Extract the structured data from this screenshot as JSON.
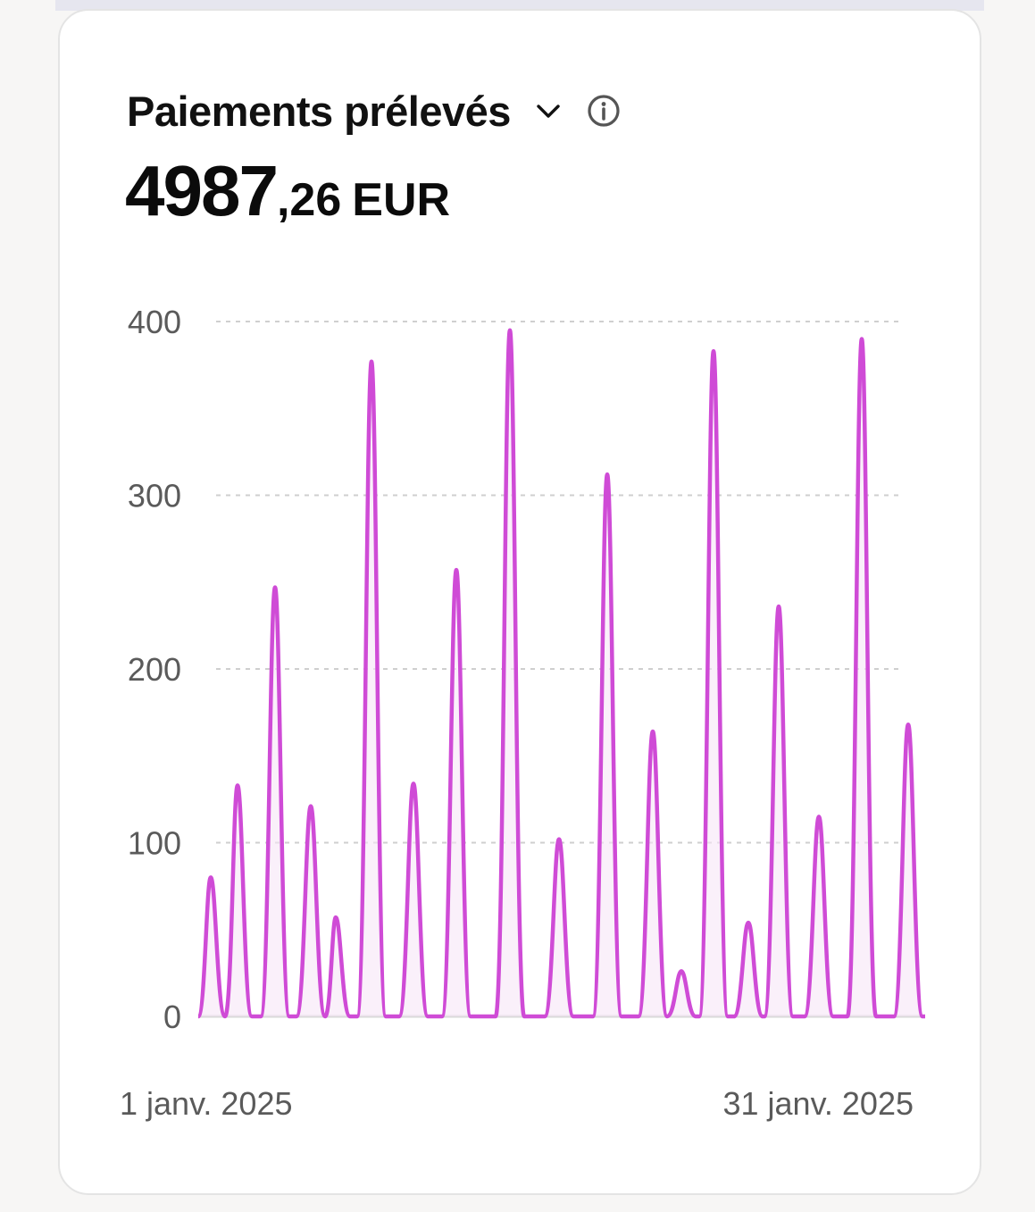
{
  "card": {
    "title": "Paiements prélevés",
    "amount_int": "4987",
    "amount_dec": ",26",
    "currency": "EUR"
  },
  "icons": {
    "dropdown": "chevron-down-icon",
    "info": "info-icon"
  },
  "colors": {
    "series": "#cf4bd6",
    "fill": "#f7e6f7",
    "grid": "#cfcfcf",
    "axis": "#5a5a5a"
  },
  "chart_data": {
    "type": "area",
    "title": "",
    "xlabel": "",
    "ylabel": "",
    "ylim": [
      0,
      400
    ],
    "y_ticks": [
      0,
      100,
      200,
      300,
      400
    ],
    "y_tick_labels": [
      "0",
      "100",
      "200",
      "300",
      "400"
    ],
    "x_range_labels": [
      "1 janv. 2025",
      "31 janv. 2025"
    ],
    "grid": true,
    "series": [
      {
        "name": "",
        "values": [
          80,
          133,
          247,
          121,
          57,
          377,
          134,
          257,
          395,
          102,
          312,
          164,
          26,
          383,
          54,
          236,
          115,
          390,
          168
        ]
      }
    ]
  }
}
